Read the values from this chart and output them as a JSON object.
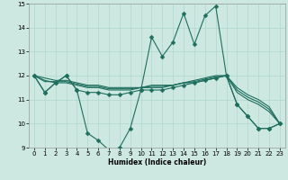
{
  "title": "",
  "xlabel": "Humidex (Indice chaleur)",
  "xlim": [
    -0.5,
    23.5
  ],
  "ylim": [
    9,
    15
  ],
  "yticks": [
    9,
    10,
    11,
    12,
    13,
    14,
    15
  ],
  "xticks": [
    0,
    1,
    2,
    3,
    4,
    5,
    6,
    7,
    8,
    9,
    10,
    11,
    12,
    13,
    14,
    15,
    16,
    17,
    18,
    19,
    20,
    21,
    22,
    23
  ],
  "bg_color": "#cde8e0",
  "line_color": "#1e6e5e",
  "grid_color": "#b0d8cc",
  "series": [
    {
      "x": [
        0,
        1,
        2,
        3,
        4,
        5,
        6,
        7,
        8,
        9,
        10,
        11,
        12,
        13,
        14,
        15,
        16,
        17,
        18,
        19,
        20,
        21,
        22,
        23
      ],
      "y": [
        12.0,
        11.3,
        11.7,
        12.0,
        11.4,
        9.6,
        9.3,
        8.9,
        9.0,
        9.8,
        11.4,
        13.6,
        12.8,
        13.4,
        14.6,
        13.3,
        14.5,
        14.9,
        12.0,
        10.8,
        10.3,
        9.8,
        9.8,
        10.0
      ],
      "marker": "D",
      "markersize": 2.5
    },
    {
      "x": [
        0,
        1,
        2,
        3,
        4,
        5,
        6,
        7,
        8,
        9,
        10,
        11,
        12,
        13,
        14,
        15,
        16,
        17,
        18,
        19,
        20,
        21,
        22,
        23
      ],
      "y": [
        12.0,
        11.8,
        11.7,
        11.7,
        11.6,
        11.5,
        11.5,
        11.4,
        11.4,
        11.4,
        11.5,
        11.5,
        11.5,
        11.6,
        11.7,
        11.7,
        11.8,
        11.9,
        12.0,
        11.3,
        11.0,
        10.8,
        10.5,
        10.0
      ],
      "marker": null,
      "markersize": 0
    },
    {
      "x": [
        0,
        1,
        2,
        3,
        4,
        5,
        6,
        7,
        8,
        9,
        10,
        11,
        12,
        13,
        14,
        15,
        16,
        17,
        18,
        19,
        20,
        21,
        22,
        23
      ],
      "y": [
        12.0,
        11.9,
        11.8,
        11.8,
        11.7,
        11.6,
        11.6,
        11.5,
        11.5,
        11.5,
        11.5,
        11.6,
        11.6,
        11.6,
        11.7,
        11.8,
        11.9,
        12.0,
        12.0,
        11.5,
        11.2,
        11.0,
        10.7,
        10.0
      ],
      "marker": null,
      "markersize": 0
    },
    {
      "x": [
        0,
        1,
        2,
        3,
        4,
        5,
        6,
        7,
        8,
        9,
        10,
        11,
        12,
        13,
        14,
        15,
        16,
        17,
        18,
        19,
        20,
        21,
        22,
        23
      ],
      "y": [
        12.0,
        11.75,
        11.75,
        11.75,
        11.65,
        11.55,
        11.55,
        11.45,
        11.45,
        11.45,
        11.5,
        11.55,
        11.55,
        11.6,
        11.7,
        11.75,
        11.85,
        11.95,
        12.0,
        11.4,
        11.1,
        10.9,
        10.6,
        10.0
      ],
      "marker": null,
      "markersize": 0
    },
    {
      "x": [
        0,
        1,
        2,
        3,
        4,
        5,
        6,
        7,
        8,
        9,
        10,
        11,
        12,
        13,
        14,
        15,
        16,
        17,
        18,
        19,
        20,
        21,
        22,
        23
      ],
      "y": [
        12.0,
        11.3,
        11.7,
        12.0,
        11.4,
        11.3,
        11.3,
        11.2,
        11.2,
        11.3,
        11.4,
        11.4,
        11.4,
        11.5,
        11.6,
        11.7,
        11.8,
        11.9,
        12.0,
        10.8,
        10.3,
        9.8,
        9.8,
        10.0
      ],
      "marker": "D",
      "markersize": 2.5
    }
  ]
}
